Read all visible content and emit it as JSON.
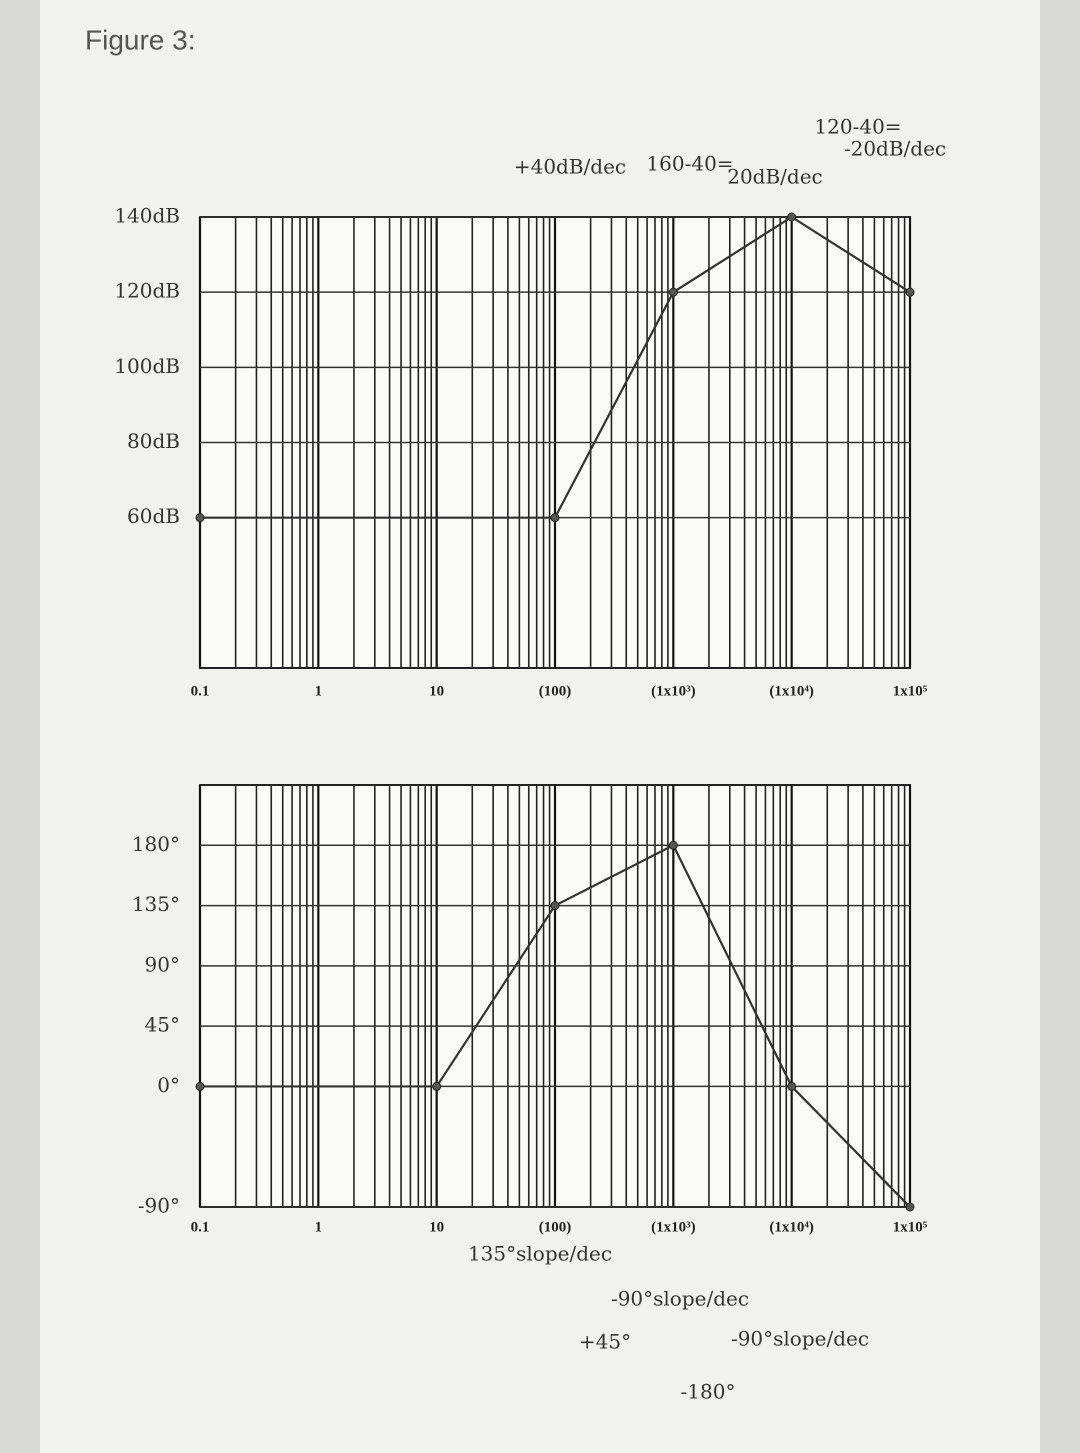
{
  "title": "Figure 3:",
  "chart_data": [
    {
      "type": "line",
      "xscale": "log",
      "grid": true,
      "color": "#333333",
      "xlim": [
        0.1,
        100000
      ],
      "xticks": [
        {
          "value": 0.1,
          "label": "0.1"
        },
        1,
        10,
        {
          "value": 100,
          "label": "(100)"
        },
        {
          "value": 1000,
          "label": "(1x10³)"
        },
        {
          "value": 10000,
          "label": "(1x10⁴)"
        },
        {
          "value": 100000,
          "label": "1x10⁵"
        }
      ],
      "ylim": [
        20,
        140
      ],
      "yticks": [
        {
          "value": 60,
          "label": "60dB"
        },
        {
          "value": 80,
          "label": "80dB"
        },
        {
          "value": 100,
          "label": "100dB"
        },
        {
          "value": 120,
          "label": "120dB"
        },
        {
          "value": 140,
          "label": "140dB"
        }
      ],
      "x": [
        0.1,
        100,
        1000,
        10000,
        100000
      ],
      "values": [
        60,
        60,
        120,
        140,
        120
      ],
      "annotations": [
        "+40dB/dec",
        "160-40=",
        "20dB/dec",
        "120-40=",
        "-20dB/dec"
      ]
    },
    {
      "type": "line",
      "xscale": "log",
      "grid": true,
      "color": "#333333",
      "xlim": [
        0.1,
        100000
      ],
      "xticks": [
        {
          "value": 0.1,
          "label": "0.1"
        },
        1,
        10,
        {
          "value": 100,
          "label": "(100)"
        },
        {
          "value": 1000,
          "label": "(1x10³)"
        },
        {
          "value": 10000,
          "label": "(1x10⁴)"
        },
        {
          "value": 100000,
          "label": "1x10⁵"
        }
      ],
      "ylim": [
        -90,
        225
      ],
      "yticks": [
        {
          "value": -90,
          "label": "-90°"
        },
        {
          "value": 0,
          "label": "0°"
        },
        {
          "value": 45,
          "label": "45°"
        },
        {
          "value": 90,
          "label": "90°"
        },
        {
          "value": 135,
          "label": "135°"
        },
        {
          "value": 180,
          "label": "180°"
        }
      ],
      "x": [
        0.1,
        10,
        100,
        1000,
        10000,
        100000
      ],
      "values": [
        0,
        0,
        135,
        180,
        0,
        -90
      ],
      "annotations": [
        "135°slope/dec",
        "-90°slope/dec",
        "+45°",
        "-90°slope/dec",
        "-180°"
      ]
    }
  ]
}
